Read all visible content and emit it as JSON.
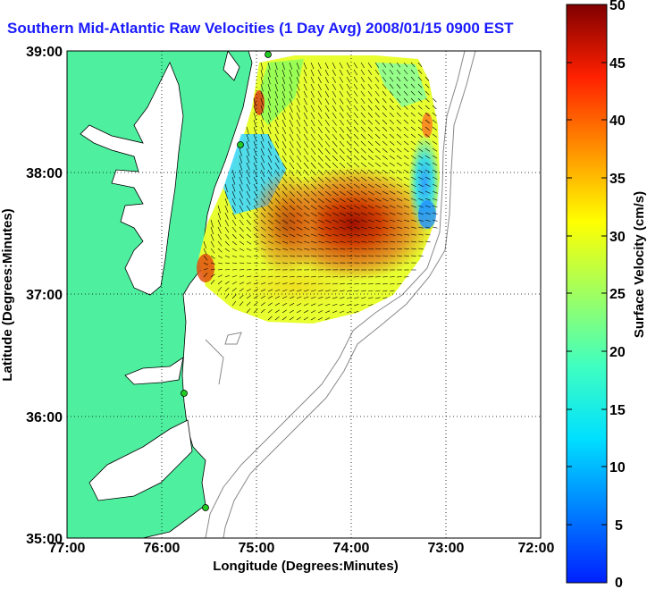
{
  "title": "Southern Mid-Atlantic Raw Velocities (1 Day Avg) 2008/01/15 0900 EST",
  "x_axis": {
    "label": "Longitude (Degrees:Minutes)",
    "ticks": [
      "77:00",
      "76:00",
      "75:00",
      "74:00",
      "73:00",
      "72:00"
    ]
  },
  "y_axis": {
    "label": "Latitude (Degrees:Minutes)",
    "ticks": [
      "39:00",
      "38:00",
      "37:00",
      "36:00",
      "35:00"
    ]
  },
  "colorbar": {
    "label": "Surface Velocity (cm/s)",
    "ticks": [
      "50",
      "45",
      "40",
      "35",
      "30",
      "25",
      "20",
      "15",
      "10",
      "5",
      "0"
    ],
    "range": [
      0,
      50
    ],
    "colormap": "jet"
  },
  "map": {
    "lon_range": [
      -77,
      -72
    ],
    "lat_range": [
      35,
      39
    ],
    "grid": "dotted",
    "land_color": "#4ef0a0",
    "water_color": "#ffffff",
    "station_color": "#22cc22"
  }
}
